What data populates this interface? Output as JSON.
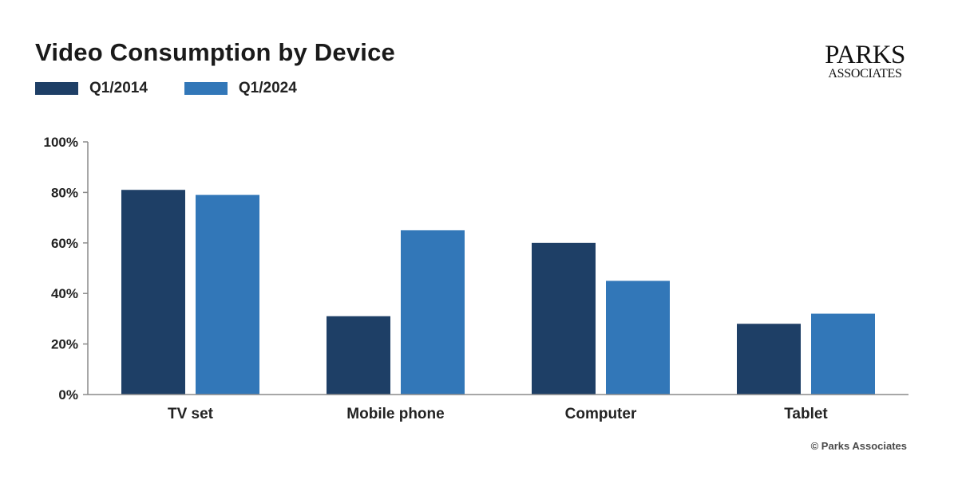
{
  "logo": {
    "line1": "PARKS",
    "line2": "ASSOCIATES"
  },
  "credit": "© Parks Associates",
  "colors": {
    "q1_2014": "#1e3f66",
    "q1_2024": "#3277b8",
    "axis": "#8a8a8a"
  },
  "chart_data": {
    "type": "bar",
    "title": "Video Consumption by Device",
    "categories": [
      "TV set",
      "Mobile phone",
      "Computer",
      "Tablet"
    ],
    "series": [
      {
        "name": "Q1/2014",
        "values": [
          81,
          31,
          60,
          28
        ]
      },
      {
        "name": "Q1/2024",
        "values": [
          79,
          65,
          45,
          32
        ]
      }
    ],
    "yticks": [
      "0%",
      "20%",
      "40%",
      "60%",
      "80%",
      "100%"
    ],
    "ylim": [
      0,
      100
    ],
    "xlabel": "",
    "ylabel": "",
    "legend": "top-left",
    "grid": false
  }
}
